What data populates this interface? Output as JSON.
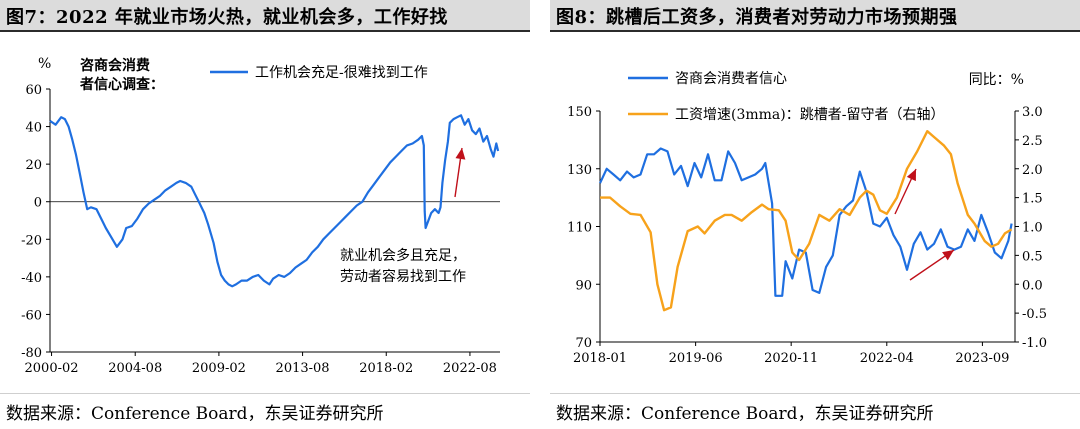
{
  "source_text": "数据来源：Conference Board，东吴证券研究所",
  "chart_data": [
    {
      "type": "line",
      "title": "图7：2022 年就业市场火热，就业机会多，工作好找",
      "ylabel": "%",
      "corner_label": "咨商会消费者信心调查：",
      "ylim": [
        -80,
        60
      ],
      "yticks": [
        -80,
        -60,
        -40,
        -20,
        0,
        20,
        40,
        60
      ],
      "xlim": [
        2000.0,
        2024.2
      ],
      "xticks": [
        "2000-02",
        "2004-08",
        "2009-02",
        "2013-08",
        "2018-02",
        "2022-08"
      ],
      "xtick_positions": [
        2000.083,
        2004.583,
        2009.083,
        2013.583,
        2018.083,
        2022.583
      ],
      "legend_position": "top",
      "annotation": [
        "就业机会多且充足，",
        "劳动者容易找到工作"
      ],
      "series": [
        {
          "name": "工作机会充足-很难找到工作",
          "color": "#1f6fe0",
          "points": [
            [
              2000.0,
              43
            ],
            [
              2000.3,
              41
            ],
            [
              2000.6,
              45
            ],
            [
              2000.8,
              44
            ],
            [
              2001.0,
              40
            ],
            [
              2001.2,
              33
            ],
            [
              2001.4,
              25
            ],
            [
              2001.6,
              15
            ],
            [
              2001.8,
              5
            ],
            [
              2002.0,
              -4
            ],
            [
              2002.2,
              -3
            ],
            [
              2002.5,
              -4
            ],
            [
              2002.8,
              -10
            ],
            [
              2003.0,
              -14
            ],
            [
              2003.3,
              -19
            ],
            [
              2003.6,
              -24
            ],
            [
              2003.9,
              -20
            ],
            [
              2004.1,
              -14
            ],
            [
              2004.4,
              -13
            ],
            [
              2004.7,
              -9
            ],
            [
              2005.0,
              -4
            ],
            [
              2005.3,
              -1
            ],
            [
              2005.6,
              1
            ],
            [
              2005.9,
              3
            ],
            [
              2006.2,
              6
            ],
            [
              2006.5,
              8
            ],
            [
              2006.8,
              10
            ],
            [
              2007.0,
              11
            ],
            [
              2007.3,
              10
            ],
            [
              2007.6,
              8
            ],
            [
              2007.8,
              4
            ],
            [
              2008.0,
              0
            ],
            [
              2008.3,
              -6
            ],
            [
              2008.5,
              -12
            ],
            [
              2008.8,
              -22
            ],
            [
              2009.0,
              -32
            ],
            [
              2009.2,
              -39
            ],
            [
              2009.4,
              -42
            ],
            [
              2009.6,
              -44
            ],
            [
              2009.8,
              -45
            ],
            [
              2010.0,
              -44
            ],
            [
              2010.3,
              -42
            ],
            [
              2010.6,
              -42
            ],
            [
              2010.9,
              -40
            ],
            [
              2011.2,
              -39
            ],
            [
              2011.5,
              -42
            ],
            [
              2011.8,
              -44
            ],
            [
              2012.0,
              -41
            ],
            [
              2012.3,
              -39
            ],
            [
              2012.6,
              -40
            ],
            [
              2012.9,
              -38
            ],
            [
              2013.2,
              -35
            ],
            [
              2013.5,
              -33
            ],
            [
              2013.8,
              -31
            ],
            [
              2014.1,
              -27
            ],
            [
              2014.4,
              -24
            ],
            [
              2014.7,
              -20
            ],
            [
              2015.0,
              -17
            ],
            [
              2015.3,
              -14
            ],
            [
              2015.6,
              -11
            ],
            [
              2015.9,
              -8
            ],
            [
              2016.2,
              -5
            ],
            [
              2016.5,
              -2
            ],
            [
              2016.8,
              0
            ],
            [
              2017.1,
              5
            ],
            [
              2017.4,
              9
            ],
            [
              2017.7,
              13
            ],
            [
              2018.0,
              17
            ],
            [
              2018.3,
              21
            ],
            [
              2018.6,
              24
            ],
            [
              2018.9,
              27
            ],
            [
              2019.2,
              30
            ],
            [
              2019.5,
              31
            ],
            [
              2019.8,
              33
            ],
            [
              2020.0,
              35
            ],
            [
              2020.1,
              30
            ],
            [
              2020.15,
              -5
            ],
            [
              2020.2,
              -14
            ],
            [
              2020.35,
              -10
            ],
            [
              2020.5,
              -6
            ],
            [
              2020.7,
              -4
            ],
            [
              2020.9,
              -6
            ],
            [
              2021.0,
              -3
            ],
            [
              2021.1,
              10
            ],
            [
              2021.25,
              22
            ],
            [
              2021.4,
              32
            ],
            [
              2021.5,
              42
            ],
            [
              2021.7,
              44
            ],
            [
              2021.9,
              45
            ],
            [
              2022.1,
              46
            ],
            [
              2022.3,
              41
            ],
            [
              2022.5,
              44
            ],
            [
              2022.7,
              38
            ],
            [
              2022.9,
              36
            ],
            [
              2023.1,
              39
            ],
            [
              2023.3,
              32
            ],
            [
              2023.5,
              35
            ],
            [
              2023.7,
              28
            ],
            [
              2023.85,
              24
            ],
            [
              2024.0,
              31
            ],
            [
              2024.1,
              27
            ]
          ]
        }
      ]
    },
    {
      "type": "line",
      "title": "图8：跳槽后工资多，消费者对劳动力市场预期强",
      "right_ylabel": "同比：%",
      "ylim": [
        70,
        150
      ],
      "yticks": [
        70,
        90,
        110,
        130,
        150
      ],
      "y2lim": [
        -1.0,
        3.0
      ],
      "y2ticks": [
        -1.0,
        -0.5,
        0.0,
        0.5,
        1.0,
        1.5,
        2.0,
        2.5,
        3.0
      ],
      "y2tick_labels": [
        "-1.0",
        "-0.5",
        "0.0",
        "0.5",
        "1.0",
        "1.5",
        "2.0",
        "2.5",
        "3.0"
      ],
      "xlim": [
        2018.0,
        2024.15
      ],
      "xticks": [
        "2018-01",
        "2019-06",
        "2020-11",
        "2022-04",
        "2023-09"
      ],
      "xtick_positions": [
        2018.0,
        2019.417,
        2020.833,
        2022.25,
        2023.667
      ],
      "legend_position": "top-left",
      "series": [
        {
          "name": "咨商会消费者信心",
          "color": "#1f6fe0",
          "axis": "left",
          "points": [
            [
              2018.0,
              125
            ],
            [
              2018.1,
              130
            ],
            [
              2018.2,
              128
            ],
            [
              2018.3,
              126
            ],
            [
              2018.4,
              129
            ],
            [
              2018.5,
              127
            ],
            [
              2018.6,
              128
            ],
            [
              2018.7,
              135
            ],
            [
              2018.8,
              135
            ],
            [
              2018.9,
              137
            ],
            [
              2019.0,
              136
            ],
            [
              2019.1,
              128
            ],
            [
              2019.2,
              131
            ],
            [
              2019.3,
              124
            ],
            [
              2019.4,
              132
            ],
            [
              2019.5,
              127
            ],
            [
              2019.6,
              135
            ],
            [
              2019.7,
              126
            ],
            [
              2019.8,
              126
            ],
            [
              2019.9,
              136
            ],
            [
              2020.0,
              132
            ],
            [
              2020.1,
              126
            ],
            [
              2020.2,
              127
            ],
            [
              2020.3,
              128
            ],
            [
              2020.4,
              130
            ],
            [
              2020.45,
              132
            ],
            [
              2020.55,
              118
            ],
            [
              2020.6,
              86
            ],
            [
              2020.7,
              86
            ],
            [
              2020.75,
              98
            ],
            [
              2020.85,
              92
            ],
            [
              2020.95,
              102
            ],
            [
              2021.05,
              101
            ],
            [
              2021.15,
              88
            ],
            [
              2021.25,
              87
            ],
            [
              2021.35,
              96
            ],
            [
              2021.45,
              100
            ],
            [
              2021.55,
              114
            ],
            [
              2021.65,
              117
            ],
            [
              2021.75,
              119
            ],
            [
              2021.85,
              129
            ],
            [
              2021.95,
              122
            ],
            [
              2022.05,
              111
            ],
            [
              2022.15,
              110
            ],
            [
              2022.25,
              113
            ],
            [
              2022.35,
              107
            ],
            [
              2022.45,
              103
            ],
            [
              2022.55,
              95
            ],
            [
              2022.65,
              104
            ],
            [
              2022.75,
              108
            ],
            [
              2022.85,
              102
            ],
            [
              2022.95,
              104
            ],
            [
              2023.05,
              109
            ],
            [
              2023.15,
              103
            ],
            [
              2023.25,
              102
            ],
            [
              2023.35,
              103
            ],
            [
              2023.45,
              109
            ],
            [
              2023.55,
              105
            ],
            [
              2023.65,
              114
            ],
            [
              2023.75,
              108
            ],
            [
              2023.85,
              101
            ],
            [
              2023.95,
              99
            ],
            [
              2024.05,
              105
            ],
            [
              2024.1,
              111
            ]
          ]
        },
        {
          "name": "工资增速(3mma)：跳槽者-留守者（右轴）",
          "color": "#f7a21b",
          "axis": "right",
          "points": [
            [
              2018.0,
              1.5
            ],
            [
              2018.15,
              1.5
            ],
            [
              2018.3,
              1.35
            ],
            [
              2018.45,
              1.22
            ],
            [
              2018.6,
              1.2
            ],
            [
              2018.75,
              0.9
            ],
            [
              2018.85,
              0.0
            ],
            [
              2018.95,
              -0.45
            ],
            [
              2019.05,
              -0.4
            ],
            [
              2019.15,
              0.3
            ],
            [
              2019.3,
              0.92
            ],
            [
              2019.45,
              1.0
            ],
            [
              2019.55,
              0.88
            ],
            [
              2019.7,
              1.1
            ],
            [
              2019.85,
              1.2
            ],
            [
              2019.95,
              1.2
            ],
            [
              2020.1,
              1.1
            ],
            [
              2020.25,
              1.25
            ],
            [
              2020.4,
              1.38
            ],
            [
              2020.5,
              1.3
            ],
            [
              2020.65,
              1.28
            ],
            [
              2020.75,
              1.1
            ],
            [
              2020.85,
              0.55
            ],
            [
              2020.95,
              0.42
            ],
            [
              2021.1,
              0.7
            ],
            [
              2021.25,
              1.2
            ],
            [
              2021.4,
              1.1
            ],
            [
              2021.55,
              1.3
            ],
            [
              2021.7,
              1.2
            ],
            [
              2021.85,
              1.5
            ],
            [
              2021.95,
              1.62
            ],
            [
              2022.05,
              1.55
            ],
            [
              2022.15,
              1.28
            ],
            [
              2022.25,
              1.22
            ],
            [
              2022.4,
              1.5
            ],
            [
              2022.55,
              2.0
            ],
            [
              2022.7,
              2.3
            ],
            [
              2022.85,
              2.65
            ],
            [
              2022.95,
              2.55
            ],
            [
              2023.1,
              2.4
            ],
            [
              2023.2,
              2.25
            ],
            [
              2023.3,
              1.75
            ],
            [
              2023.45,
              1.2
            ],
            [
              2023.55,
              1.05
            ],
            [
              2023.7,
              0.75
            ],
            [
              2023.8,
              0.65
            ],
            [
              2023.9,
              0.7
            ],
            [
              2024.0,
              0.88
            ],
            [
              2024.1,
              0.95
            ]
          ]
        }
      ]
    }
  ]
}
